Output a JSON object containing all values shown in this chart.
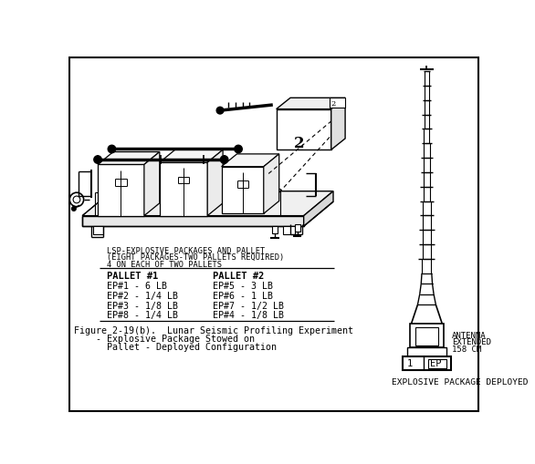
{
  "bg_color": "#ffffff",
  "title_line1": "Figure 2-19(b).  Lunar Seismic Profiling Experiment",
  "title_line2": "    - Explosive Package Stowed on",
  "title_line3": "      Pallet - Deployed Configuration",
  "lsp_line1": "LSP-EXPLOSIVE PACKAGES AND PALLET",
  "lsp_line2": "(EIGHT PACKAGES-TWO PALLETS REQUIRED)",
  "lsp_line3": "4 ON EACH OF TWO PALLETS",
  "pallet1_header": "PALLET #1",
  "pallet1_rows": [
    "EP#1 - 6 LB",
    "EP#2 - 1/4 LB",
    "EP#3 - 1/8 LB",
    "EP#8 - 1/4 LB"
  ],
  "pallet2_header": "PALLET #2",
  "pallet2_rows": [
    "EP#5 - 3 LB",
    "EP#6 - 1 LB",
    "EP#7 - 1/2 LB",
    "EP#4 - 1/8 LB"
  ],
  "antenna_label_line1": "ANTENNA",
  "antenna_label_line2": "EXTENDED",
  "antenna_label_line3": "158 CM",
  "deployed_label": "EXPLOSIVE PACKAGE DEPLOYED",
  "label1": "1",
  "label_ep": "EP",
  "border_color": "#000000"
}
